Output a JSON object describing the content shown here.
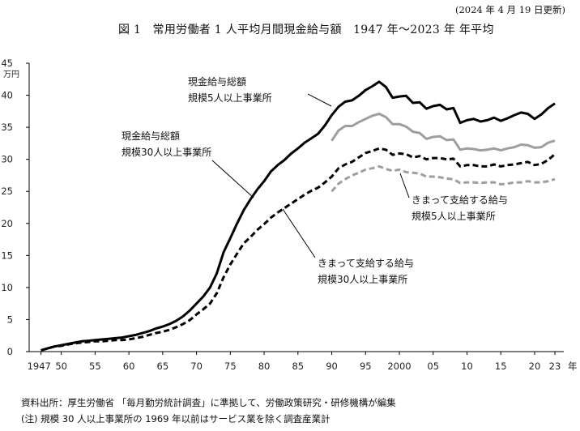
{
  "header": {
    "updated": "(2024 年 4 月 19 日更新)",
    "title": "図 1　常用労働者 1 人平均月間現金給与額　1947 年～2023 年 年平均"
  },
  "footer": {
    "source": "資料出所：厚生労働省 「毎月勤労統計調査」に準拠して、労働政策研究・研修機構が編集",
    "note": "(注) 規模 30 人以上事業所の 1969 年以前はサービス業を除く調査産業計"
  },
  "chart_data": {
    "type": "line",
    "title": "図 1　常用労働者 1 人平均月間現金給与額　1947 年～2023 年 年平均",
    "xlabel": "年",
    "ylabel": "万円",
    "xlim": [
      1947,
      2023
    ],
    "ylim": [
      0,
      45
    ],
    "y_ticks": [
      0,
      5,
      10,
      15,
      20,
      25,
      30,
      35,
      40,
      45
    ],
    "x_tick_labels": [
      {
        "year": 1947,
        "label": "1947"
      },
      {
        "year": 1950,
        "label": "50"
      },
      {
        "year": 1955,
        "label": "55"
      },
      {
        "year": 1960,
        "label": "60"
      },
      {
        "year": 1965,
        "label": "65"
      },
      {
        "year": 1970,
        "label": "70"
      },
      {
        "year": 1975,
        "label": "75"
      },
      {
        "year": 1980,
        "label": "80"
      },
      {
        "year": 1985,
        "label": "85"
      },
      {
        "year": 1990,
        "label": "90"
      },
      {
        "year": 1995,
        "label": "95"
      },
      {
        "year": 2000,
        "label": "2000"
      },
      {
        "year": 2005,
        "label": "05"
      },
      {
        "year": 2010,
        "label": "10"
      },
      {
        "year": 2015,
        "label": "15"
      },
      {
        "year": 2020,
        "label": "20"
      },
      {
        "year": 2023,
        "label": "23"
      }
    ],
    "grid": false,
    "series": [
      {
        "id": "total30",
        "name_lines": [
          "現金給与総額",
          "規模30人以上事業所"
        ],
        "color": "#000000",
        "style": "solid",
        "x": [
          1947,
          1948,
          1949,
          1950,
          1951,
          1952,
          1953,
          1954,
          1955,
          1956,
          1957,
          1958,
          1959,
          1960,
          1961,
          1962,
          1963,
          1964,
          1965,
          1966,
          1967,
          1968,
          1969,
          1970,
          1971,
          1972,
          1973,
          1974,
          1975,
          1976,
          1977,
          1978,
          1979,
          1980,
          1981,
          1982,
          1983,
          1984,
          1985,
          1986,
          1987,
          1988,
          1989,
          1990,
          1991,
          1992,
          1993,
          1994,
          1995,
          1996,
          1997,
          1998,
          1999,
          2000,
          2001,
          2002,
          2003,
          2004,
          2005,
          2006,
          2007,
          2008,
          2009,
          2010,
          2011,
          2012,
          2013,
          2014,
          2015,
          2016,
          2017,
          2018,
          2019,
          2020,
          2021,
          2022,
          2023
        ],
        "values": [
          0.2,
          0.5,
          0.8,
          1.0,
          1.2,
          1.4,
          1.6,
          1.7,
          1.8,
          1.9,
          2.0,
          2.1,
          2.2,
          2.4,
          2.6,
          2.9,
          3.2,
          3.6,
          3.9,
          4.3,
          4.8,
          5.5,
          6.4,
          7.5,
          8.6,
          10.0,
          12.2,
          15.5,
          17.7,
          20.0,
          22.1,
          23.8,
          25.3,
          26.6,
          28.1,
          29.1,
          29.9,
          30.9,
          31.7,
          32.6,
          33.3,
          34.0,
          35.3,
          36.9,
          38.2,
          39.0,
          39.2,
          39.9,
          40.8,
          41.4,
          42.1,
          41.3,
          39.6,
          39.8,
          39.9,
          38.8,
          38.9,
          37.9,
          38.3,
          38.5,
          37.8,
          38.0,
          35.7,
          36.1,
          36.3,
          35.9,
          36.1,
          36.5,
          36.0,
          36.4,
          36.9,
          37.3,
          37.1,
          36.3,
          37.0,
          38.0,
          38.7
        ]
      },
      {
        "id": "total5",
        "name_lines": [
          "現金給与総額",
          "規模5人以上事業所"
        ],
        "color": "#9e9e9e",
        "style": "solid",
        "x": [
          1990,
          1991,
          1992,
          1993,
          1994,
          1995,
          1996,
          1997,
          1998,
          1999,
          2000,
          2001,
          2002,
          2003,
          2004,
          2005,
          2006,
          2007,
          2008,
          2009,
          2010,
          2011,
          2012,
          2013,
          2014,
          2015,
          2016,
          2017,
          2018,
          2019,
          2020,
          2021,
          2022,
          2023
        ],
        "values": [
          32.9,
          34.5,
          35.2,
          35.2,
          35.8,
          36.3,
          36.8,
          37.1,
          36.6,
          35.5,
          35.5,
          35.1,
          34.3,
          34.1,
          33.2,
          33.5,
          33.6,
          33.0,
          33.1,
          31.5,
          31.7,
          31.6,
          31.4,
          31.5,
          31.7,
          31.4,
          31.7,
          31.9,
          32.3,
          32.2,
          31.8,
          31.9,
          32.6,
          32.9
        ]
      },
      {
        "id": "fixed30",
        "name_lines": [
          "きまって支給する給与",
          "規模30人以上事業所"
        ],
        "color": "#000000",
        "style": "dashed",
        "x": [
          1947,
          1948,
          1949,
          1950,
          1951,
          1952,
          1953,
          1954,
          1955,
          1956,
          1957,
          1958,
          1959,
          1960,
          1961,
          1962,
          1963,
          1964,
          1965,
          1966,
          1967,
          1968,
          1969,
          1970,
          1971,
          1972,
          1973,
          1974,
          1975,
          1976,
          1977,
          1978,
          1979,
          1980,
          1981,
          1982,
          1983,
          1984,
          1985,
          1986,
          1987,
          1988,
          1989,
          1990,
          1991,
          1992,
          1993,
          1994,
          1995,
          1996,
          1997,
          1998,
          1999,
          2000,
          2001,
          2002,
          2003,
          2004,
          2005,
          2006,
          2007,
          2008,
          2009,
          2010,
          2011,
          2012,
          2013,
          2014,
          2015,
          2016,
          2017,
          2018,
          2019,
          2020,
          2021,
          2022,
          2023
        ],
        "values": [
          0.2,
          0.5,
          0.8,
          0.9,
          1.1,
          1.3,
          1.4,
          1.5,
          1.6,
          1.6,
          1.7,
          1.8,
          1.8,
          1.9,
          2.1,
          2.3,
          2.6,
          2.9,
          3.1,
          3.4,
          3.8,
          4.3,
          4.9,
          5.8,
          6.6,
          7.5,
          9.1,
          11.6,
          13.6,
          15.3,
          16.9,
          17.9,
          19.0,
          19.9,
          20.9,
          21.7,
          22.4,
          23.1,
          23.8,
          24.5,
          25.1,
          25.6,
          26.4,
          27.3,
          28.6,
          29.2,
          29.6,
          30.3,
          31.0,
          31.3,
          31.7,
          31.5,
          30.7,
          30.9,
          30.8,
          30.3,
          30.5,
          30.0,
          30.2,
          30.2,
          30.0,
          30.1,
          28.9,
          29.1,
          29.1,
          28.9,
          28.9,
          29.2,
          28.9,
          29.1,
          29.2,
          29.4,
          29.6,
          29.1,
          29.3,
          29.9,
          30.8
        ]
      },
      {
        "id": "fixed5",
        "name_lines": [
          "きまって支給する給与",
          "規模5人以上事業所"
        ],
        "color": "#9e9e9e",
        "style": "dashed",
        "x": [
          1990,
          1991,
          1992,
          1993,
          1994,
          1995,
          1996,
          1997,
          1998,
          1999,
          2000,
          2001,
          2002,
          2003,
          2004,
          2005,
          2006,
          2007,
          2008,
          2009,
          2010,
          2011,
          2012,
          2013,
          2014,
          2015,
          2016,
          2017,
          2018,
          2019,
          2020,
          2021,
          2022,
          2023
        ],
        "values": [
          25.0,
          26.2,
          26.9,
          27.5,
          27.9,
          28.4,
          28.6,
          28.9,
          28.5,
          28.2,
          28.4,
          28.0,
          27.9,
          27.8,
          27.3,
          27.3,
          27.2,
          27.0,
          26.9,
          26.3,
          26.4,
          26.4,
          26.3,
          26.4,
          26.4,
          26.1,
          26.2,
          26.4,
          26.4,
          26.6,
          26.4,
          26.4,
          26.6,
          26.9
        ]
      }
    ]
  }
}
